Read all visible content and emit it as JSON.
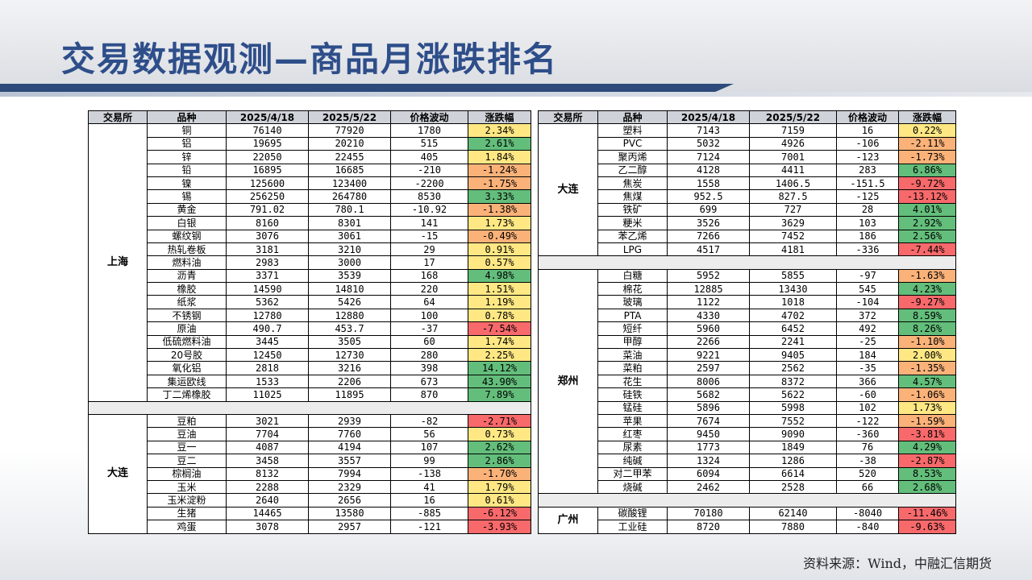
{
  "title": "交易数据观测—商品月涨跌排名",
  "source": "资料来源：Wind，中融汇信期货",
  "headers": [
    "交易所",
    "品种",
    "2025/4/18",
    "2025/5/22",
    "价格波动",
    "涨跌幅"
  ],
  "left_groups": [
    {
      "exchange": "上海",
      "rows": [
        [
          "铜",
          "76140",
          "77920",
          "1780",
          "2.34%"
        ],
        [
          "铝",
          "19695",
          "20210",
          "515",
          "2.61%"
        ],
        [
          "锌",
          "22050",
          "22455",
          "405",
          "1.84%"
        ],
        [
          "铅",
          "16895",
          "16685",
          "-210",
          "-1.24%"
        ],
        [
          "镍",
          "125600",
          "123400",
          "-2200",
          "-1.75%"
        ],
        [
          "锡",
          "256250",
          "264780",
          "8530",
          "3.33%"
        ],
        [
          "黄金",
          "791.02",
          "780.1",
          "-10.92",
          "-1.38%"
        ],
        [
          "白银",
          "8160",
          "8301",
          "141",
          "1.73%"
        ],
        [
          "螺纹钢",
          "3076",
          "3061",
          "-15",
          "-0.49%"
        ],
        [
          "热轧卷板",
          "3181",
          "3210",
          "29",
          "0.91%"
        ],
        [
          "燃料油",
          "2983",
          "3000",
          "17",
          "0.57%"
        ],
        [
          "沥青",
          "3371",
          "3539",
          "168",
          "4.98%"
        ],
        [
          "橡胶",
          "14590",
          "14810",
          "220",
          "1.51%"
        ],
        [
          "纸浆",
          "5362",
          "5426",
          "64",
          "1.19%"
        ],
        [
          "不锈钢",
          "12780",
          "12880",
          "100",
          "0.78%"
        ],
        [
          "原油",
          "490.7",
          "453.7",
          "-37",
          "-7.54%"
        ],
        [
          "低硫燃料油",
          "3445",
          "3505",
          "60",
          "1.74%"
        ],
        [
          "20号胶",
          "12450",
          "12730",
          "280",
          "2.25%"
        ],
        [
          "氧化铝",
          "2818",
          "3216",
          "398",
          "14.12%"
        ],
        [
          "集运欧线",
          "1533",
          "2206",
          "673",
          "43.90%"
        ],
        [
          "丁二烯橡胶",
          "11025",
          "11895",
          "870",
          "7.89%"
        ]
      ]
    },
    {
      "exchange": "大连",
      "rows": [
        [
          "豆粕",
          "3021",
          "2939",
          "-82",
          "-2.71%"
        ],
        [
          "豆油",
          "7704",
          "7760",
          "56",
          "0.73%"
        ],
        [
          "豆一",
          "4087",
          "4194",
          "107",
          "2.62%"
        ],
        [
          "豆二",
          "3458",
          "3557",
          "99",
          "2.86%"
        ],
        [
          "棕榈油",
          "8132",
          "7994",
          "-138",
          "-1.70%"
        ],
        [
          "玉米",
          "2288",
          "2329",
          "41",
          "1.79%"
        ],
        [
          "玉米淀粉",
          "2640",
          "2656",
          "16",
          "0.61%"
        ],
        [
          "生猪",
          "14465",
          "13580",
          "-885",
          "-6.12%"
        ],
        [
          "鸡蛋",
          "3078",
          "2957",
          "-121",
          "-3.93%"
        ]
      ]
    }
  ],
  "right_groups": [
    {
      "exchange": "大连",
      "rows": [
        [
          "塑料",
          "7143",
          "7159",
          "16",
          "0.22%"
        ],
        [
          "PVC",
          "5032",
          "4926",
          "-106",
          "-2.11%"
        ],
        [
          "聚丙烯",
          "7124",
          "7001",
          "-123",
          "-1.73%"
        ],
        [
          "乙二醇",
          "4128",
          "4411",
          "283",
          "6.86%"
        ],
        [
          "焦炭",
          "1558",
          "1406.5",
          "-151.5",
          "-9.72%"
        ],
        [
          "焦煤",
          "952.5",
          "827.5",
          "-125",
          "-13.12%"
        ],
        [
          "铁矿",
          "699",
          "727",
          "28",
          "4.01%"
        ],
        [
          "粳米",
          "3526",
          "3629",
          "103",
          "2.92%"
        ],
        [
          "苯乙烯",
          "7266",
          "7452",
          "186",
          "2.56%"
        ],
        [
          "LPG",
          "4517",
          "4181",
          "-336",
          "-7.44%"
        ]
      ]
    },
    {
      "exchange": "郑州",
      "rows": [
        [
          "白糖",
          "5952",
          "5855",
          "-97",
          "-1.63%"
        ],
        [
          "棉花",
          "12885",
          "13430",
          "545",
          "4.23%"
        ],
        [
          "玻璃",
          "1122",
          "1018",
          "-104",
          "-9.27%"
        ],
        [
          "PTA",
          "4330",
          "4702",
          "372",
          "8.59%"
        ],
        [
          "短纤",
          "5960",
          "6452",
          "492",
          "8.26%"
        ],
        [
          "甲醇",
          "2266",
          "2241",
          "-25",
          "-1.10%"
        ],
        [
          "菜油",
          "9221",
          "9405",
          "184",
          "2.00%"
        ],
        [
          "菜粕",
          "2597",
          "2562",
          "-35",
          "-1.35%"
        ],
        [
          "花生",
          "8006",
          "8372",
          "366",
          "4.57%"
        ],
        [
          "硅铁",
          "5682",
          "5622",
          "-60",
          "-1.06%"
        ],
        [
          "锰硅",
          "5896",
          "5998",
          "102",
          "1.73%"
        ],
        [
          "苹果",
          "7674",
          "7552",
          "-122",
          "-1.59%"
        ],
        [
          "红枣",
          "9450",
          "9090",
          "-360",
          "-3.81%"
        ],
        [
          "尿素",
          "1773",
          "1849",
          "76",
          "4.29%"
        ],
        [
          "纯碱",
          "1324",
          "1286",
          "-38",
          "-2.87%"
        ],
        [
          "对二甲苯",
          "6094",
          "6614",
          "520",
          "8.53%"
        ],
        [
          "烧碱",
          "2462",
          "2528",
          "66",
          "2.68%"
        ]
      ]
    },
    {
      "exchange": "广州",
      "rows": [
        [
          "碳酸锂",
          "70180",
          "62140",
          "-8040",
          "-11.46%"
        ],
        [
          "工业硅",
          "8720",
          "7880",
          "-840",
          "-9.63%"
        ]
      ]
    }
  ],
  "colors": {
    "title": "#2e4e8a",
    "header_bg": "#cfd3d9",
    "strong_up": "#63be7b",
    "mild_up": "#ffe884",
    "mild_down": "#fbb279",
    "strong_down": "#f8696b"
  }
}
